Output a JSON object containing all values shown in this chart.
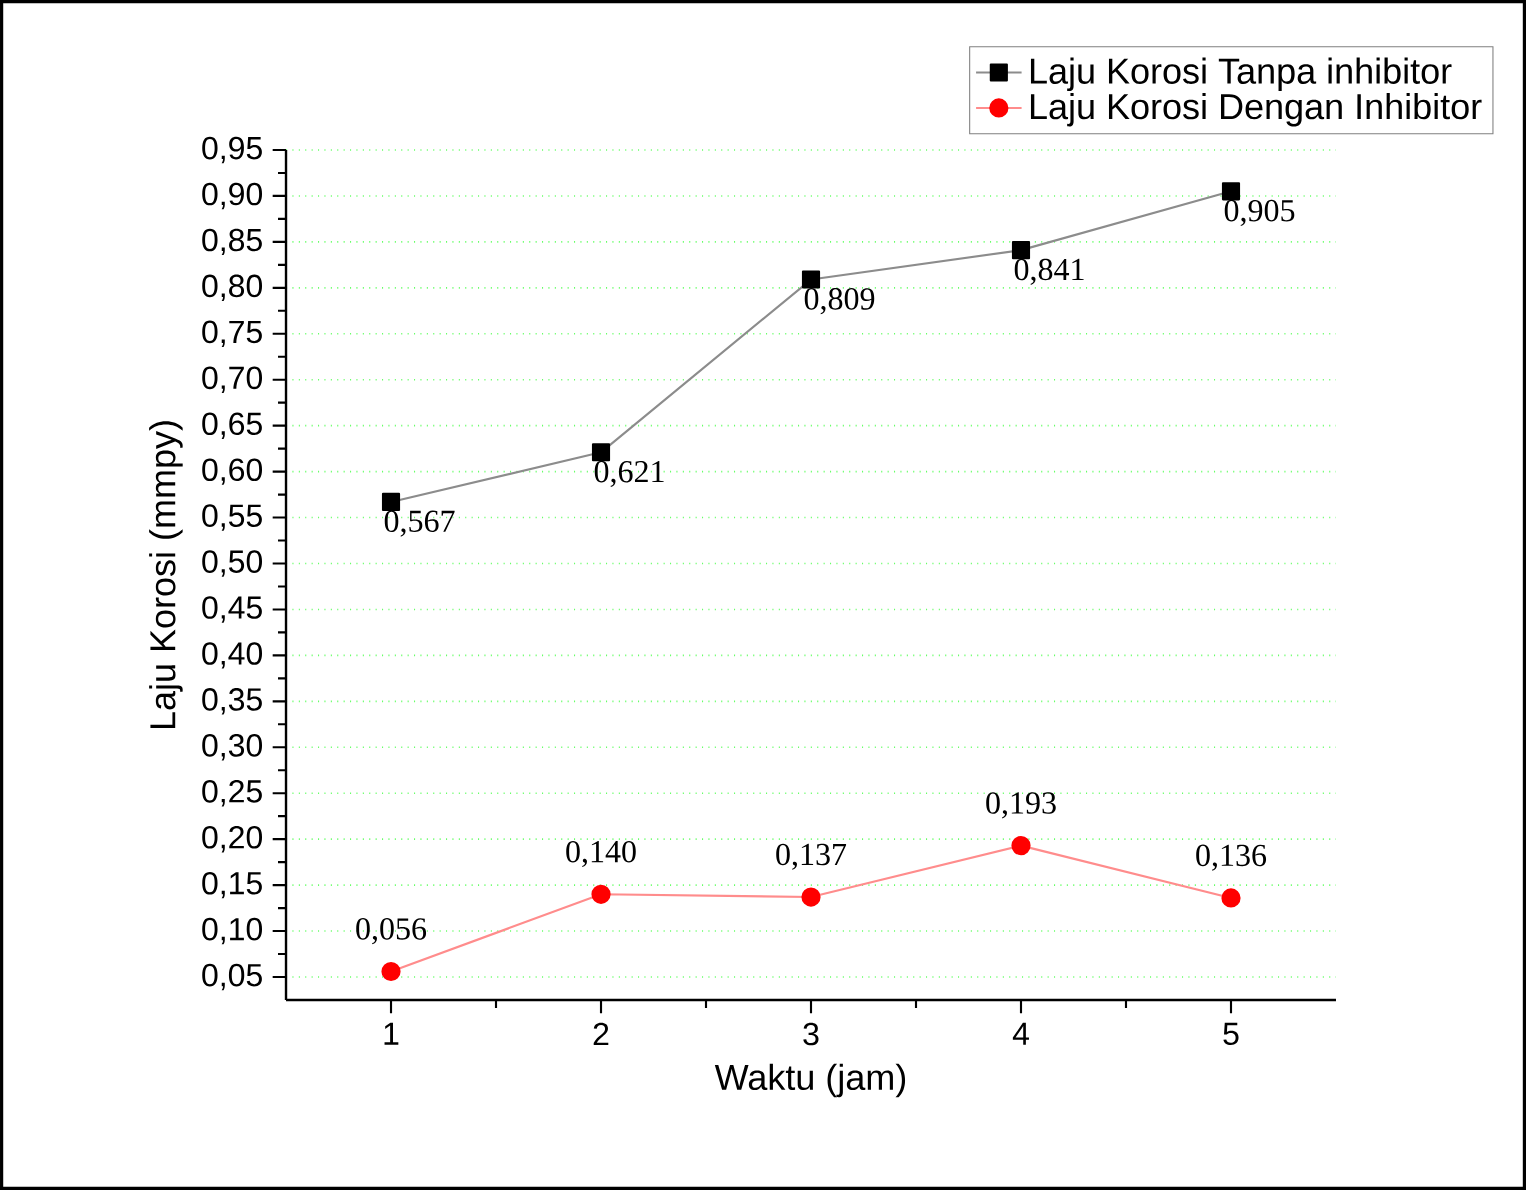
{
  "chart_data": {
    "type": "line",
    "xlabel": "Waktu (jam)",
    "ylabel": "Laju Korosi (mmpy)",
    "x": [
      1,
      2,
      3,
      4,
      5
    ],
    "series": [
      {
        "name": "Laju Korosi Tanpa inhibitor",
        "color": "#000000",
        "marker": "square",
        "values": [
          0.567,
          0.621,
          0.809,
          0.841,
          0.905
        ],
        "value_labels": [
          "0,567",
          "0,621",
          "0,809",
          "0,841",
          "0,905"
        ]
      },
      {
        "name": "Laju Korosi Dengan Inhibitor",
        "color": "#ff0000",
        "marker": "circle",
        "values": [
          0.056,
          0.14,
          0.137,
          0.193,
          0.136
        ],
        "value_labels": [
          "0,056",
          "0,140",
          "0,137",
          "0,193",
          "0,136"
        ]
      }
    ],
    "xlim": [
      0.5,
      5.5
    ],
    "xticks": [
      1,
      2,
      3,
      4,
      5
    ],
    "ylim": [
      0.025,
      0.95
    ],
    "yticks": [
      {
        "value": 0.05,
        "label": "0,05"
      },
      {
        "value": 0.1,
        "label": "0,10"
      },
      {
        "value": 0.15,
        "label": "0,15"
      },
      {
        "value": 0.2,
        "label": "0,20"
      },
      {
        "value": 0.25,
        "label": "0,25"
      },
      {
        "value": 0.3,
        "label": "0,30"
      },
      {
        "value": 0.35,
        "label": "0,35"
      },
      {
        "value": 0.4,
        "label": "0,40"
      },
      {
        "value": 0.45,
        "label": "0,45"
      },
      {
        "value": 0.5,
        "label": "0,50"
      },
      {
        "value": 0.55,
        "label": "0,55"
      },
      {
        "value": 0.6,
        "label": "0,60"
      },
      {
        "value": 0.65,
        "label": "0,65"
      },
      {
        "value": 0.7,
        "label": "0,70"
      },
      {
        "value": 0.75,
        "label": "0,75"
      },
      {
        "value": 0.8,
        "label": "0,80"
      },
      {
        "value": 0.85,
        "label": "0,85"
      },
      {
        "value": 0.9,
        "label": "0,90"
      },
      {
        "value": 0.95,
        "label": "0,95"
      }
    ],
    "grid": "y",
    "legend": "top right"
  }
}
